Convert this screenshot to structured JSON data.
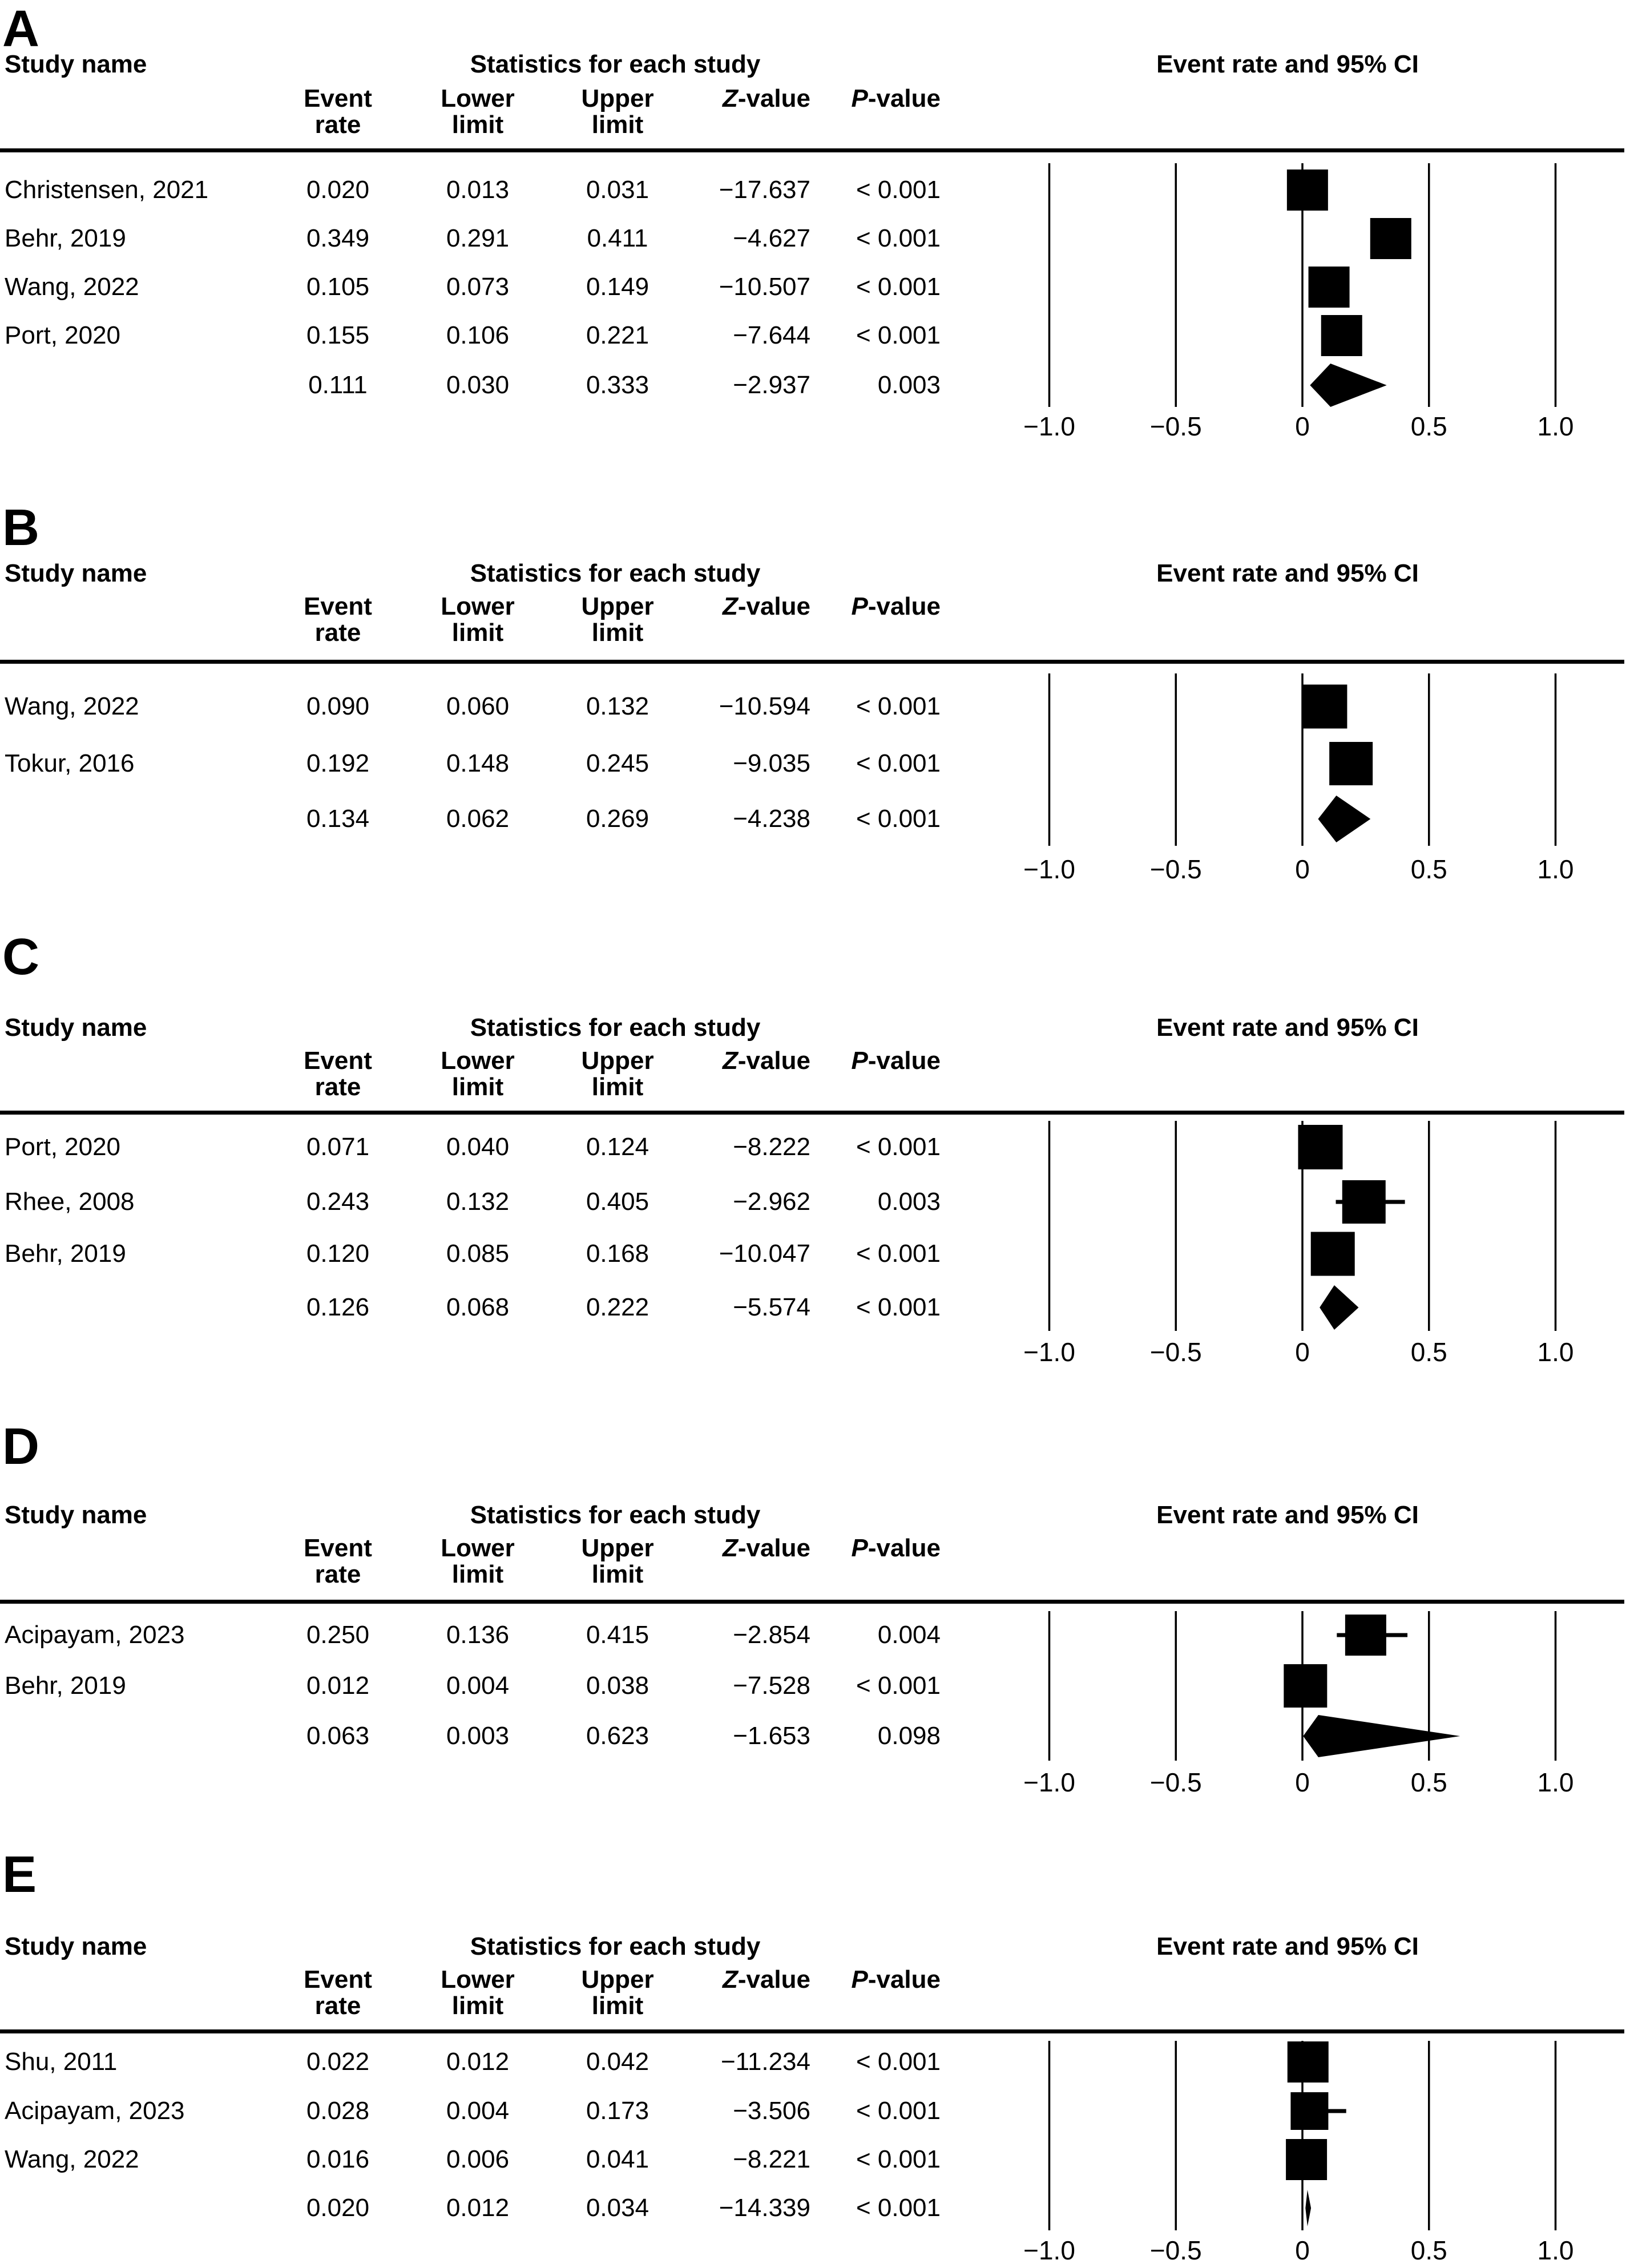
{
  "figure_header": {
    "study_col_label": "Study name",
    "stats_group_label": "Statistics for each study",
    "plot_group_label": "Event rate and 95% CI",
    "col_labels": {
      "event_line1": "Event",
      "event_line2": "rate",
      "lower_line1": "Lower",
      "lower_line2": "limit",
      "upper_line1": "Upper",
      "upper_line2": "limit",
      "z": "Z-value",
      "p": "P-value"
    }
  },
  "axis": {
    "tick_labels": [
      "−1.0",
      "−0.5",
      "0",
      "0.5",
      "1.0"
    ],
    "tick_values": [
      -1,
      -0.5,
      0,
      0.5,
      1
    ],
    "min": -1,
    "max": 1,
    "gridlines": true
  },
  "colors": {
    "foreground": "#000000",
    "background": "#ffffff"
  },
  "chart_data": [
    {
      "panel": "A",
      "type": "forest",
      "studies": [
        {
          "name": "Christensen, 2021",
          "event_rate": "0.020",
          "lower": "0.013",
          "upper": "0.031",
          "z": "−17.637",
          "p": "< 0.001",
          "size": 72
        },
        {
          "name": "Behr, 2019",
          "event_rate": "0.349",
          "lower": "0.291",
          "upper": "0.411",
          "z": "−4.627",
          "p": "< 0.001",
          "size": 72
        },
        {
          "name": "Wang, 2022",
          "event_rate": "0.105",
          "lower": "0.073",
          "upper": "0.149",
          "z": "−10.507",
          "p": "< 0.001",
          "size": 72
        },
        {
          "name": "Port, 2020",
          "event_rate": "0.155",
          "lower": "0.106",
          "upper": "0.221",
          "z": "−7.644",
          "p": "< 0.001",
          "size": 72
        }
      ],
      "summary": {
        "event_rate": "0.111",
        "lower": "0.030",
        "upper": "0.333",
        "z": "−2.937",
        "p": "0.003",
        "diamond_height": 76
      }
    },
    {
      "panel": "B",
      "type": "forest",
      "studies": [
        {
          "name": "Wang, 2022",
          "event_rate": "0.090",
          "lower": "0.060",
          "upper": "0.132",
          "z": "−10.594",
          "p": "< 0.001",
          "size": 77
        },
        {
          "name": "Tokur, 2016",
          "event_rate": "0.192",
          "lower": "0.148",
          "upper": "0.245",
          "z": "−9.035",
          "p": "< 0.001",
          "size": 76
        }
      ],
      "summary": {
        "event_rate": "0.134",
        "lower": "0.062",
        "upper": "0.269",
        "z": "−4.238",
        "p": "< 0.001",
        "diamond_height": 82
      }
    },
    {
      "panel": "C",
      "type": "forest",
      "studies": [
        {
          "name": "Port, 2020",
          "event_rate": "0.071",
          "lower": "0.040",
          "upper": "0.124",
          "z": "−8.222",
          "p": "< 0.001",
          "size": 78
        },
        {
          "name": "Rhee, 2008",
          "event_rate": "0.243",
          "lower": "0.132",
          "upper": "0.405",
          "z": "−2.962",
          "p": "0.003",
          "size": 76
        },
        {
          "name": "Behr, 2019",
          "event_rate": "0.120",
          "lower": "0.085",
          "upper": "0.168",
          "z": "−10.047",
          "p": "< 0.001",
          "size": 77
        }
      ],
      "summary": {
        "event_rate": "0.126",
        "lower": "0.068",
        "upper": "0.222",
        "z": "−5.574",
        "p": "< 0.001",
        "diamond_height": 78
      }
    },
    {
      "panel": "D",
      "type": "forest",
      "studies": [
        {
          "name": "Acipayam, 2023",
          "event_rate": "0.250",
          "lower": "0.136",
          "upper": "0.415",
          "z": "−2.854",
          "p": "0.004",
          "size": 72
        },
        {
          "name": "Behr, 2019",
          "event_rate": "0.012",
          "lower": "0.004",
          "upper": "0.038",
          "z": "−7.528",
          "p": "< 0.001",
          "size": 76
        }
      ],
      "summary": {
        "event_rate": "0.063",
        "lower": "0.003",
        "upper": "0.623",
        "z": "−1.653",
        "p": "0.098",
        "diamond_height": 74
      }
    },
    {
      "panel": "E",
      "type": "forest",
      "studies": [
        {
          "name": "Shu, 2011",
          "event_rate": "0.022",
          "lower": "0.012",
          "upper": "0.042",
          "z": "−11.234",
          "p": "< 0.001",
          "size": 72
        },
        {
          "name": "Acipayam, 2023",
          "event_rate": "0.028",
          "lower": "0.004",
          "upper": "0.173",
          "z": "−3.506",
          "p": "< 0.001",
          "size": 66
        },
        {
          "name": "Wang, 2022",
          "event_rate": "0.016",
          "lower": "0.006",
          "upper": "0.041",
          "z": "−8.221",
          "p": "< 0.001",
          "size": 72
        }
      ],
      "summary": {
        "event_rate": "0.020",
        "lower": "0.012",
        "upper": "0.034",
        "z": "−14.339",
        "p": "< 0.001",
        "diamond_height": 64
      }
    }
  ]
}
